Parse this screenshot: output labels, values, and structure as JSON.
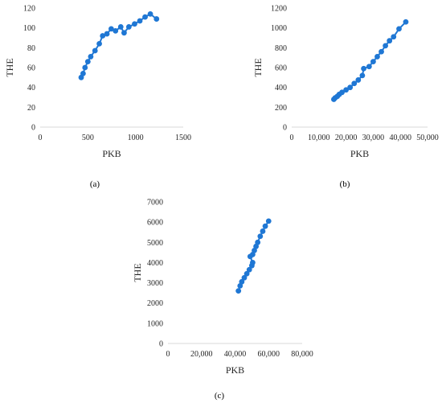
{
  "chart_data": [
    {
      "type": "scatter",
      "panel_label": "(a)",
      "xlabel": "PKB",
      "ylabel": "THE",
      "xlim": [
        0,
        1500
      ],
      "ylim": [
        0,
        120
      ],
      "x_ticks": [
        "0",
        "500",
        "1000",
        "1500"
      ],
      "y_ticks": [
        "0",
        "20",
        "40",
        "60",
        "80",
        "100",
        "120"
      ],
      "x_tick_values": [
        0,
        500,
        1000,
        1500
      ],
      "y_tick_values": [
        0,
        20,
        40,
        60,
        80,
        100,
        120
      ],
      "grid": "none",
      "line": "solid",
      "color": "#1f77d4",
      "points": [
        [
          430,
          50
        ],
        [
          450,
          54
        ],
        [
          470,
          60
        ],
        [
          500,
          66
        ],
        [
          530,
          71
        ],
        [
          575,
          77
        ],
        [
          620,
          84
        ],
        [
          655,
          92
        ],
        [
          700,
          94
        ],
        [
          745,
          99
        ],
        [
          790,
          97
        ],
        [
          845,
          101
        ],
        [
          880,
          95
        ],
        [
          930,
          101
        ],
        [
          990,
          104
        ],
        [
          1045,
          107
        ],
        [
          1100,
          111
        ],
        [
          1155,
          114
        ],
        [
          1220,
          109
        ]
      ]
    },
    {
      "type": "scatter",
      "panel_label": "(b)",
      "xlabel": "PKB",
      "ylabel": "THE",
      "xlim": [
        0,
        50000
      ],
      "ylim": [
        0,
        1200
      ],
      "x_ticks": [
        "0",
        "10,000",
        "20,000",
        "30,000",
        "40,000",
        "50,000"
      ],
      "y_ticks": [
        "0",
        "200",
        "400",
        "600",
        "800",
        "1000",
        "1200"
      ],
      "x_tick_values": [
        0,
        10000,
        20000,
        30000,
        40000,
        50000
      ],
      "y_tick_values": [
        0,
        200,
        400,
        600,
        800,
        1000,
        1200
      ],
      "grid": "none",
      "line": "solid",
      "color": "#1f77d4",
      "points": [
        [
          15500,
          280
        ],
        [
          16000,
          295
        ],
        [
          16800,
          310
        ],
        [
          17500,
          330
        ],
        [
          18500,
          350
        ],
        [
          20000,
          375
        ],
        [
          21500,
          400
        ],
        [
          23000,
          440
        ],
        [
          24500,
          475
        ],
        [
          26000,
          520
        ],
        [
          26500,
          590
        ],
        [
          28500,
          610
        ],
        [
          30000,
          660
        ],
        [
          31500,
          710
        ],
        [
          33000,
          760
        ],
        [
          34500,
          820
        ],
        [
          36000,
          870
        ],
        [
          37500,
          910
        ],
        [
          39500,
          990
        ],
        [
          42000,
          1060
        ]
      ]
    },
    {
      "type": "scatter",
      "panel_label": "(c)",
      "xlabel": "PKB",
      "ylabel": "THE",
      "xlim": [
        0,
        80000
      ],
      "ylim": [
        0,
        7000
      ],
      "x_ticks": [
        "0",
        "20,000",
        "40,000",
        "60,000",
        "80,000"
      ],
      "y_ticks": [
        "0",
        "1000",
        "2000",
        "3000",
        "4000",
        "5000",
        "6000",
        "7000"
      ],
      "x_tick_values": [
        0,
        20000,
        40000,
        60000,
        80000
      ],
      "y_tick_values": [
        0,
        1000,
        2000,
        3000,
        4000,
        5000,
        6000,
        7000
      ],
      "grid": "none",
      "line": "solid",
      "color": "#1f77d4",
      "points": [
        [
          42000,
          2600
        ],
        [
          43000,
          2850
        ],
        [
          44000,
          3050
        ],
        [
          45500,
          3250
        ],
        [
          47000,
          3450
        ],
        [
          48500,
          3650
        ],
        [
          50000,
          3850
        ],
        [
          50500,
          4000
        ],
        [
          49000,
          4300
        ],
        [
          50500,
          4400
        ],
        [
          51500,
          4600
        ],
        [
          52500,
          4800
        ],
        [
          53500,
          5000
        ],
        [
          55000,
          5300
        ],
        [
          56500,
          5550
        ],
        [
          58000,
          5800
        ],
        [
          60000,
          6050
        ]
      ]
    }
  ]
}
